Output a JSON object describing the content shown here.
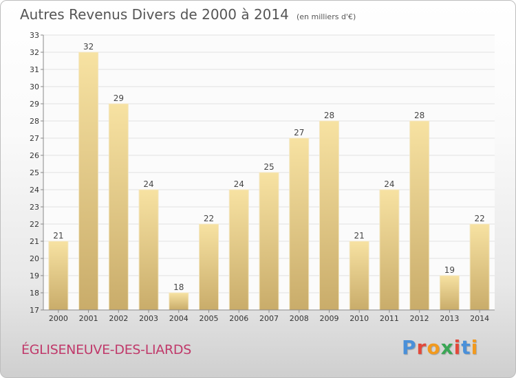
{
  "header": {
    "title": "Autres Revenus Divers de 2000 à 2014",
    "subtitle": "(en milliers d'€)"
  },
  "footer": {
    "commune": "ÉGLISENEUVE-DES-LIARDS",
    "logo_text": "Proxiti",
    "logo_colors": [
      "#4a90d9",
      "#e2493b",
      "#f29a1e",
      "#3aa655",
      "#e2493b",
      "#4a90d9",
      "#f29a1e"
    ]
  },
  "colors": {
    "bar_light": "#f7e2a2",
    "bar_dark": "#c9ac6a",
    "grid": "#e0e0e0",
    "axis": "#888888"
  },
  "chart_data": {
    "type": "bar",
    "title": "Autres Revenus Divers de 2000 à 2014",
    "subtitle": "(en milliers d'€)",
    "categories": [
      "2000",
      "2001",
      "2002",
      "2003",
      "2004",
      "2005",
      "2006",
      "2007",
      "2008",
      "2009",
      "2010",
      "2011",
      "2012",
      "2013",
      "2014"
    ],
    "values": [
      21,
      32,
      29,
      24,
      18,
      22,
      24,
      25,
      27,
      28,
      21,
      24,
      28,
      19,
      22
    ],
    "ylim": [
      17,
      33
    ],
    "yticks": [
      17,
      18,
      19,
      20,
      21,
      22,
      23,
      24,
      25,
      26,
      27,
      28,
      29,
      30,
      31,
      32,
      33
    ],
    "grid": true,
    "xlabel": "",
    "ylabel": ""
  }
}
